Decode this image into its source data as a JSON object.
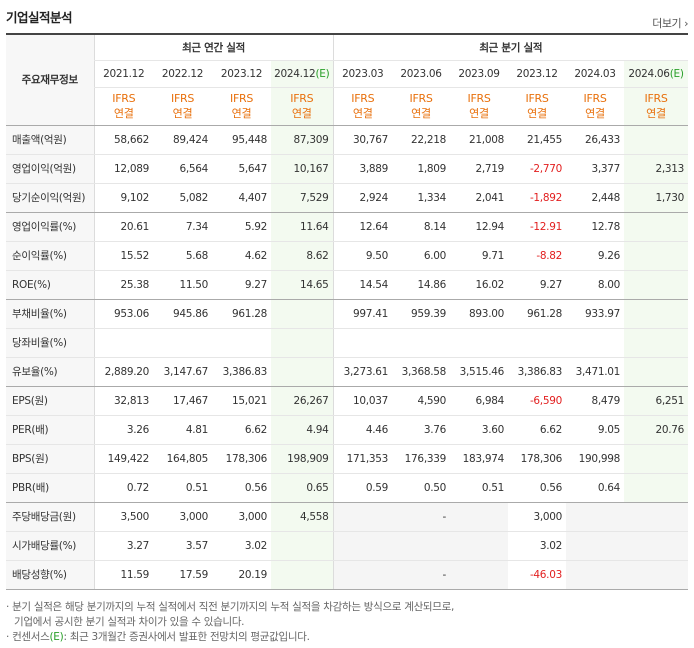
{
  "header": {
    "title": "기업실적분석",
    "more_label": "더보기",
    "more_chevron": "›"
  },
  "groups": {
    "row_header": "주요재무정보",
    "annual": "최근 연간 실적",
    "quarterly": "최근 분기 실적"
  },
  "periods": [
    {
      "label": "2021.12",
      "est": ""
    },
    {
      "label": "2022.12",
      "est": ""
    },
    {
      "label": "2023.12",
      "est": ""
    },
    {
      "label": "2024.12",
      "est": "(E)"
    },
    {
      "label": "2023.03",
      "est": ""
    },
    {
      "label": "2023.06",
      "est": ""
    },
    {
      "label": "2023.09",
      "est": ""
    },
    {
      "label": "2023.12",
      "est": ""
    },
    {
      "label": "2024.03",
      "est": ""
    },
    {
      "label": "2024.06",
      "est": "(E)"
    }
  ],
  "ifrs": {
    "line1": "IFRS",
    "line2": "연결"
  },
  "rows": [
    {
      "label": "매출액(억원)",
      "values": [
        "58,662",
        "89,424",
        "95,448",
        "87,309",
        "30,767",
        "22,218",
        "21,008",
        "21,455",
        "26,433",
        ""
      ],
      "sep": false
    },
    {
      "label": "영업이익(억원)",
      "values": [
        "12,089",
        "6,564",
        "5,647",
        "10,167",
        "3,889",
        "1,809",
        "2,719",
        "-2,770",
        "3,377",
        "2,313"
      ],
      "sep": false
    },
    {
      "label": "당기순이익(억원)",
      "values": [
        "9,102",
        "5,082",
        "4,407",
        "7,529",
        "2,924",
        "1,334",
        "2,041",
        "-1,892",
        "2,448",
        "1,730"
      ],
      "sep": true
    },
    {
      "label": "영업이익률(%)",
      "values": [
        "20.61",
        "7.34",
        "5.92",
        "11.64",
        "12.64",
        "8.14",
        "12.94",
        "-12.91",
        "12.78",
        ""
      ],
      "sep": false
    },
    {
      "label": "순이익률(%)",
      "values": [
        "15.52",
        "5.68",
        "4.62",
        "8.62",
        "9.50",
        "6.00",
        "9.71",
        "-8.82",
        "9.26",
        ""
      ],
      "sep": false
    },
    {
      "label": "ROE(%)",
      "values": [
        "25.38",
        "11.50",
        "9.27",
        "14.65",
        "14.54",
        "14.86",
        "16.02",
        "9.27",
        "8.00",
        ""
      ],
      "sep": true
    },
    {
      "label": "부채비율(%)",
      "values": [
        "953.06",
        "945.86",
        "961.28",
        "",
        "997.41",
        "959.39",
        "893.00",
        "961.28",
        "933.97",
        ""
      ],
      "sep": false
    },
    {
      "label": "당좌비율(%)",
      "values": [
        "",
        "",
        "",
        "",
        "",
        "",
        "",
        "",
        "",
        ""
      ],
      "sep": false
    },
    {
      "label": "유보율(%)",
      "values": [
        "2,889.20",
        "3,147.67",
        "3,386.83",
        "",
        "3,273.61",
        "3,368.58",
        "3,515.46",
        "3,386.83",
        "3,471.01",
        ""
      ],
      "sep": true
    },
    {
      "label": "EPS(원)",
      "values": [
        "32,813",
        "17,467",
        "15,021",
        "26,267",
        "10,037",
        "4,590",
        "6,984",
        "-6,590",
        "8,479",
        "6,251"
      ],
      "sep": false
    },
    {
      "label": "PER(배)",
      "values": [
        "3.26",
        "4.81",
        "6.62",
        "4.94",
        "4.46",
        "3.76",
        "3.60",
        "6.62",
        "9.05",
        "20.76"
      ],
      "sep": false
    },
    {
      "label": "BPS(원)",
      "values": [
        "149,422",
        "164,805",
        "178,306",
        "198,909",
        "171,353",
        "176,339",
        "183,974",
        "178,306",
        "190,998",
        ""
      ],
      "sep": false
    },
    {
      "label": "PBR(배)",
      "values": [
        "0.72",
        "0.51",
        "0.56",
        "0.65",
        "0.59",
        "0.50",
        "0.51",
        "0.56",
        "0.64",
        ""
      ],
      "sep": true
    },
    {
      "label": "주당배당금(원)",
      "values": [
        "3,500",
        "3,000",
        "3,000",
        "4,558",
        "",
        "-",
        "",
        "3,000",
        "",
        ""
      ],
      "sep": false,
      "shaded_quarters": true
    },
    {
      "label": "시가배당률(%)",
      "values": [
        "3.27",
        "3.57",
        "3.02",
        "",
        "",
        "",
        "",
        "3.02",
        "",
        ""
      ],
      "sep": false,
      "shaded_quarters": true
    },
    {
      "label": "배당성향(%)",
      "values": [
        "11.59",
        "17.59",
        "20.19",
        "",
        "",
        "-",
        "",
        "-46.03",
        "",
        ""
      ],
      "sep": true,
      "shaded_quarters": true
    }
  ],
  "notes": {
    "line1": "· 분기 실적은 해당 분기까지의 누적 실적에서 직전 분기까지의 누적 실적을 차감하는 방식으로 계산되므로,",
    "line2": "기업에서 공시한 분기 실적과 차이가 있을 수 있습니다.",
    "line3_pre": "· 컨센서스",
    "line3_est": "(E)",
    "line3_post": ": 최근 3개월간 증권사에서 발표한 전망치의 평균값입니다."
  }
}
